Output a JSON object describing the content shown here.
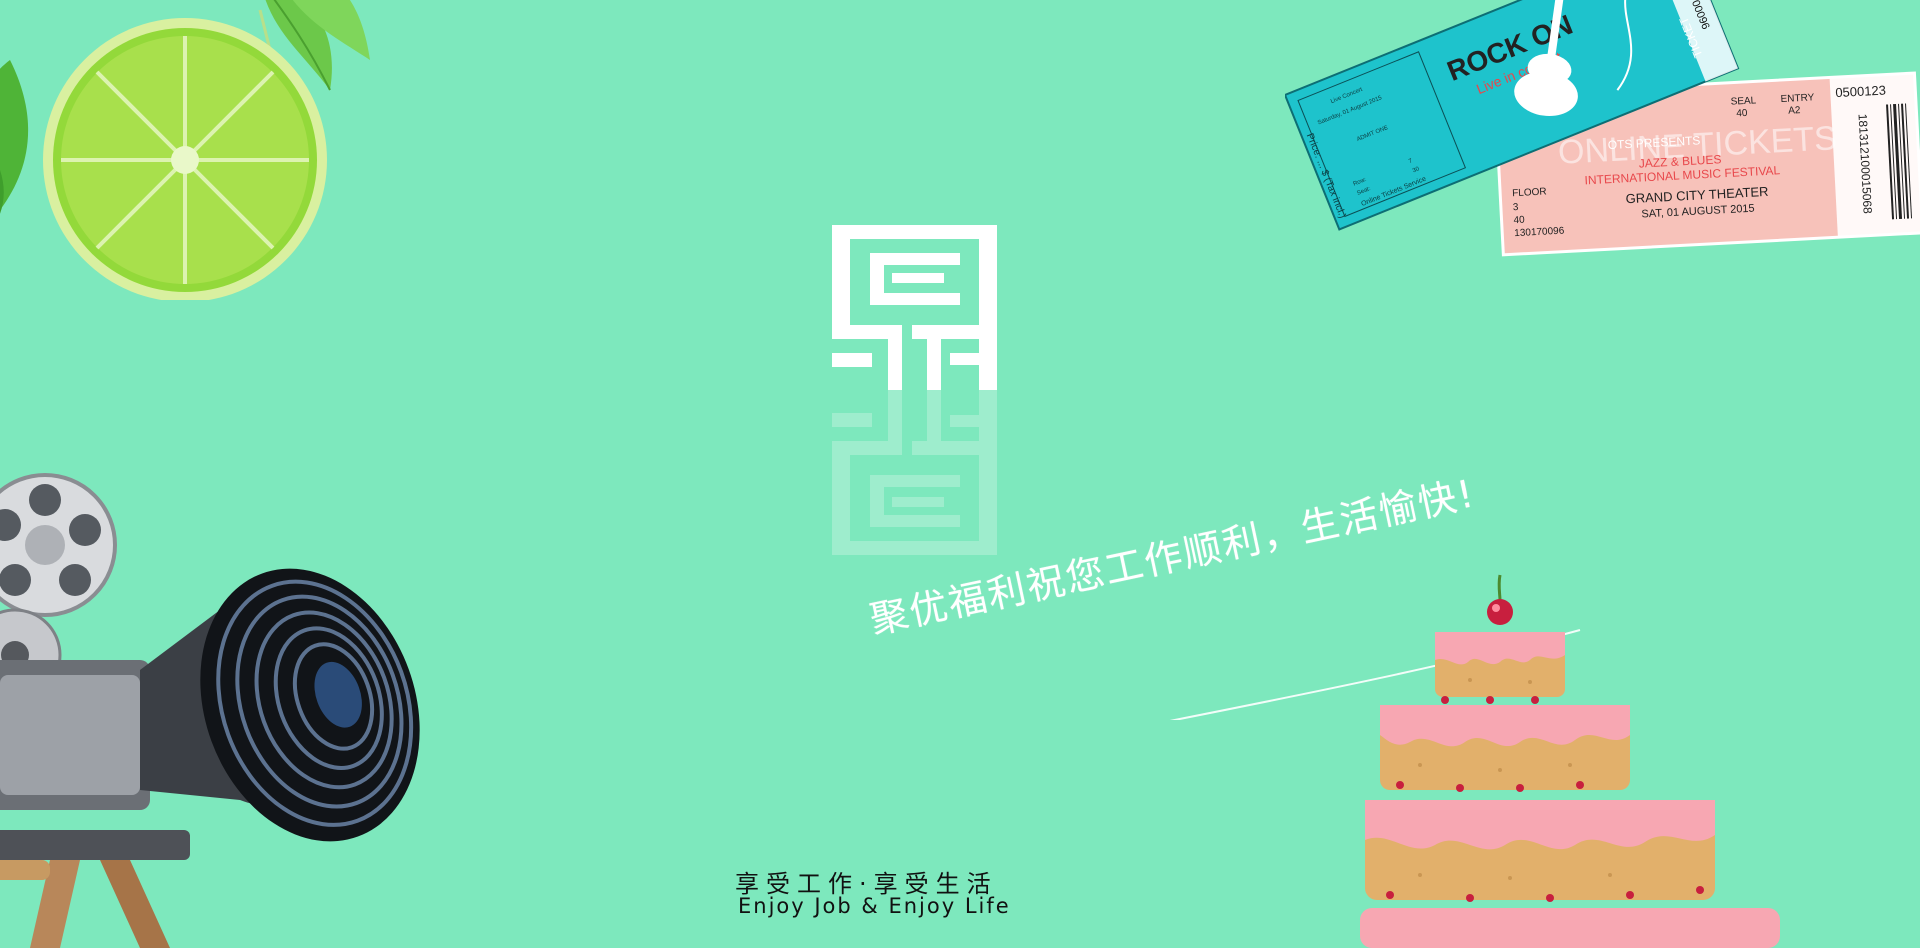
{
  "colors": {
    "background": "#7de8bd",
    "white": "#ffffff",
    "lime": "#8cd43a",
    "ticket_teal": "#1ec3cc",
    "ticket_pink": "#f7c2ba",
    "cake_pink": "#f59aa5"
  },
  "logo": {
    "icon": "logo-mark"
  },
  "slogan": {
    "text": "聚优福利祝您工作顺利，生活愉快!"
  },
  "tagline": {
    "cn": "享受工作·享受生活",
    "en": "Enjoy Job & Enjoy Life"
  },
  "ticket_blue": {
    "title": "ROCK ON",
    "subtitle": "Live in concert",
    "serial": "N 00096",
    "stub": "TICKET",
    "line1": "Live Concert",
    "line2": "Saturday, 01 August 2015",
    "line3": "ADMIT ONE",
    "row_label": "Row:",
    "row_value": "7",
    "seat_label": "Seat:",
    "seat_value": "30",
    "service": "Online Tickets Service",
    "price": "Price: ... $ (Tax incl.)"
  },
  "ticket_pink": {
    "number": "0500123",
    "barcode_number": "181312100015068",
    "seal_label": "SEAL",
    "seal_value": "40",
    "entry_label": "ENTRY",
    "entry_value": "A2",
    "presents": "OTS PRESENTS",
    "watermark": "ONLINE TICKETS",
    "event1": "JAZZ & BLUES",
    "event2": "INTERNATIONAL MUSIC FESTIVAL",
    "venue": "GRAND CITY THEATER",
    "date": "SAT, 01 AUGUST 2015",
    "floor_label": "FLOOR",
    "floor_value": "3",
    "row_value": "40",
    "code": "130170096"
  }
}
